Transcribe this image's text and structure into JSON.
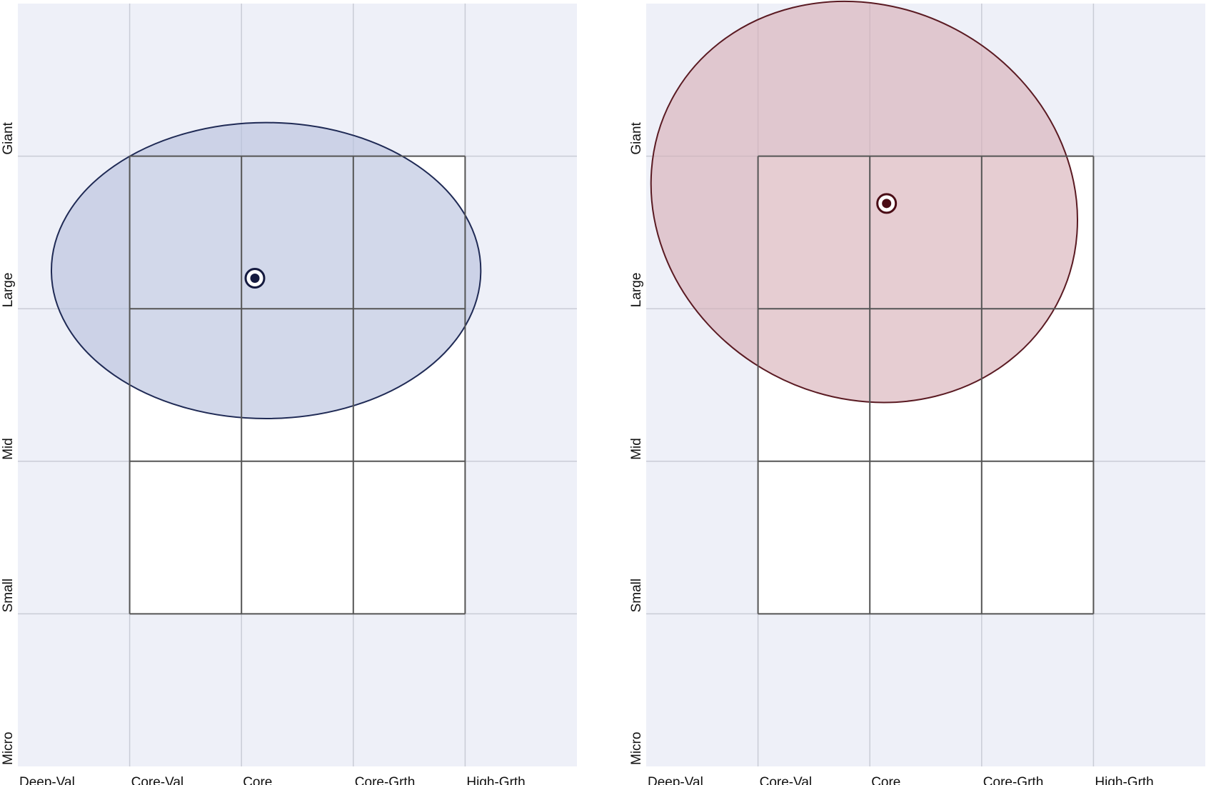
{
  "chart_data": [
    {
      "type": "style-box",
      "title": "",
      "x_categories": [
        "Deep-Val",
        "Core-Val",
        "Core",
        "Core-Grth",
        "High-Grth"
      ],
      "y_categories": [
        "Giant",
        "Large",
        "Mid",
        "Small",
        "Micro"
      ],
      "xlim": [
        0,
        5
      ],
      "ylim": [
        0,
        5
      ],
      "grid": true,
      "box": {
        "x_range": [
          1,
          4
        ],
        "y_range": [
          1,
          4
        ]
      },
      "centroid": {
        "x": 2.12,
        "y": 3.2
      },
      "ellipse": {
        "cx": 2.22,
        "cy": 3.25,
        "rx": 1.92,
        "ry": 0.97,
        "rotation_deg": 0
      },
      "colors": {
        "fill": "#b6c0dd",
        "stroke": "#1f2a55",
        "marker": "#151a3f"
      }
    },
    {
      "type": "style-box",
      "title": "",
      "x_categories": [
        "Deep-Val",
        "Core-Val",
        "Core",
        "Core-Grth",
        "High-Grth"
      ],
      "y_categories": [
        "Giant",
        "Large",
        "Mid",
        "Small",
        "Micro"
      ],
      "xlim": [
        0,
        5
      ],
      "ylim": [
        0,
        5
      ],
      "grid": true,
      "box": {
        "x_range": [
          1,
          4
        ],
        "y_range": [
          1,
          4
        ]
      },
      "centroid": {
        "x": 2.15,
        "y": 3.69
      },
      "ellipse": {
        "cx": 1.95,
        "cy": 3.7,
        "rx": 1.95,
        "ry": 1.28,
        "rotation_deg": 28
      },
      "colors": {
        "fill": "#d7aeb6",
        "stroke": "#5a1a22",
        "marker": "#4a0d16"
      }
    }
  ],
  "colors": {
    "background": "#eef0f8",
    "grid": "#c9ccd6",
    "box_line": "#555555",
    "box_fill": "#ffffff"
  }
}
